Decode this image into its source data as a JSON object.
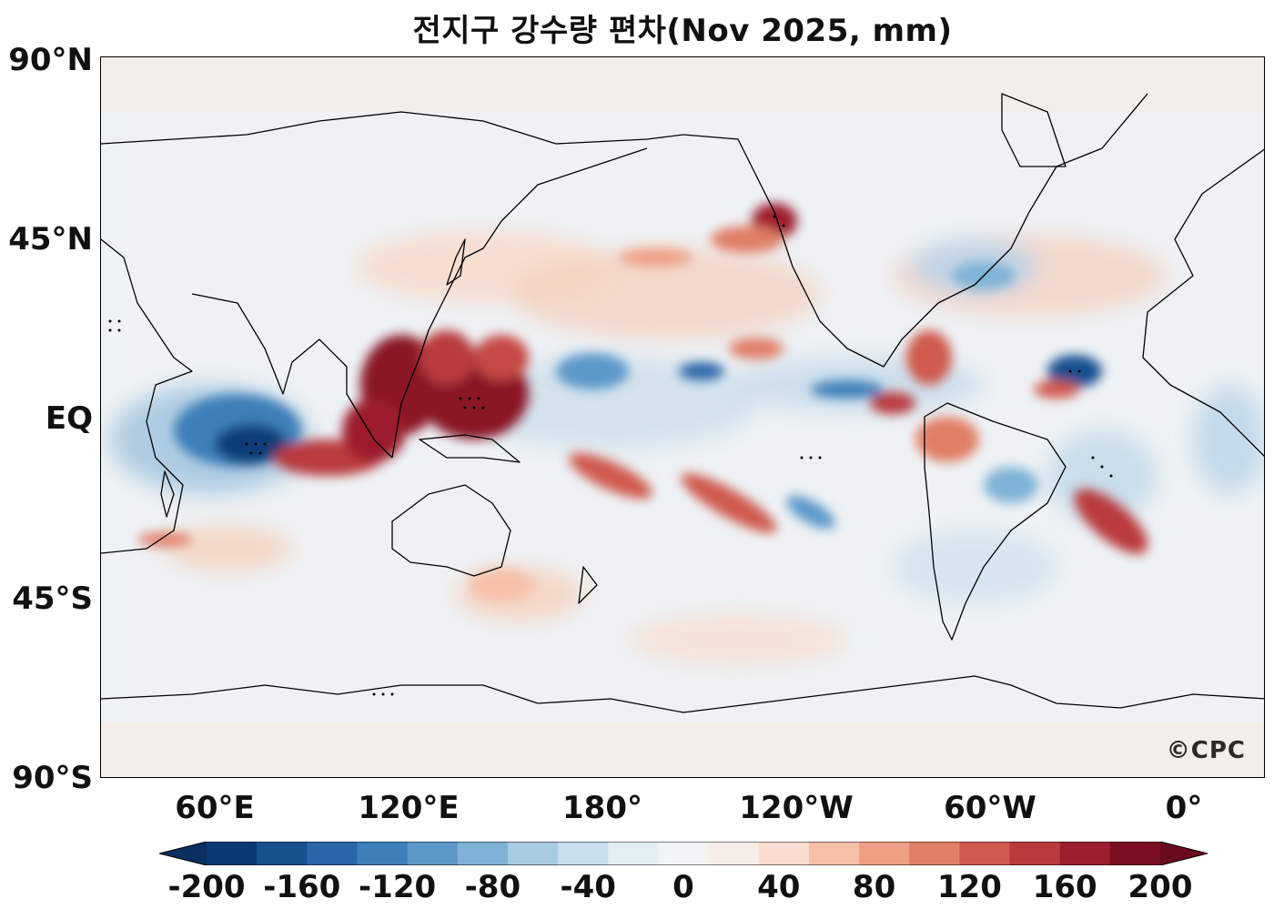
{
  "title": "전지구 강수량 편차(Nov 2025, mm)",
  "credit": "©CPC",
  "lat_labels": [
    "90°N",
    "45°N",
    "EQ",
    "45°S",
    "90°S"
  ],
  "lon_labels": [
    "60°E",
    "120°E",
    "180°",
    "120°W",
    "60°W",
    "0°"
  ],
  "colorbar": {
    "ticks": [
      "-200",
      "-160",
      "-120",
      "-80",
      "-40",
      "0",
      "40",
      "80",
      "120",
      "160",
      "200"
    ],
    "colors": [
      "#0a3a73",
      "#174f8f",
      "#2a66a8",
      "#3d7fba",
      "#5b98c9",
      "#7fb2d6",
      "#a8cbe2",
      "#c9dfee",
      "#e3edf4",
      "#f2f4f6",
      "#f8eee9",
      "#fbdcd0",
      "#f6bfa8",
      "#ee9f84",
      "#e07f68",
      "#cf5a4e",
      "#b93a3d",
      "#9c1f2f",
      "#7a0f22"
    ],
    "min_color": "#0a2f60",
    "max_color": "#6a0a1e"
  },
  "colors": {
    "background": "#eef2f5",
    "positive_light": "#f8e6dd",
    "negative_light": "#dce8f1",
    "coastline": "#000000"
  }
}
